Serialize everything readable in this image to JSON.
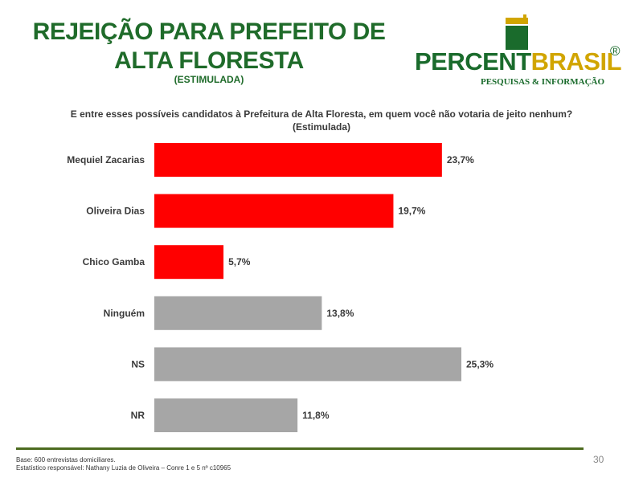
{
  "header": {
    "title_line1": "REJEIÇÃO PARA PREFEITO DE",
    "title_line2": "ALTA FLORESTA",
    "subtitle": "(ESTIMULADA)"
  },
  "logo": {
    "name_part1": "PERCENT",
    "name_part2": "BRASIL",
    "registered": "®",
    "tagline": "PESQUISAS & INFORMAÇÃO",
    "icon": "flag-stripes-icon",
    "colors": {
      "green": "#1a6b2c",
      "gold": "#d1a500"
    }
  },
  "question": "E entre esses possíveis candidatos à Prefeitura de Alta Floresta, em quem você não votaria de jeito nenhum?(Estimulada)",
  "chart_data": {
    "type": "bar",
    "orientation": "horizontal",
    "title": "",
    "xlabel": "",
    "ylabel": "",
    "grid": false,
    "legend": "none",
    "xlim": [
      0,
      25.3
    ],
    "categories": [
      "Mequiel Zacarias",
      "Oliveira Dias",
      "Chico Gamba",
      "Ninguém",
      "NS",
      "NR"
    ],
    "values": [
      23.7,
      19.7,
      5.7,
      13.8,
      25.3,
      11.8
    ],
    "value_labels": [
      "23,7%",
      "19,7%",
      "5,7%",
      "13,8%",
      "25,3%",
      "11,8%"
    ],
    "colors": [
      "#ff0000",
      "#ff0000",
      "#ff0000",
      "#a6a6a6",
      "#a6a6a6",
      "#a6a6a6"
    ]
  },
  "footer": {
    "base": "Base: 600 entrevistas domiciliares.",
    "statistician": "Estatístico responsável: Nathany Luzia de Oliveira – Conre 1 e 5 nº c10965",
    "page_number": "30"
  }
}
